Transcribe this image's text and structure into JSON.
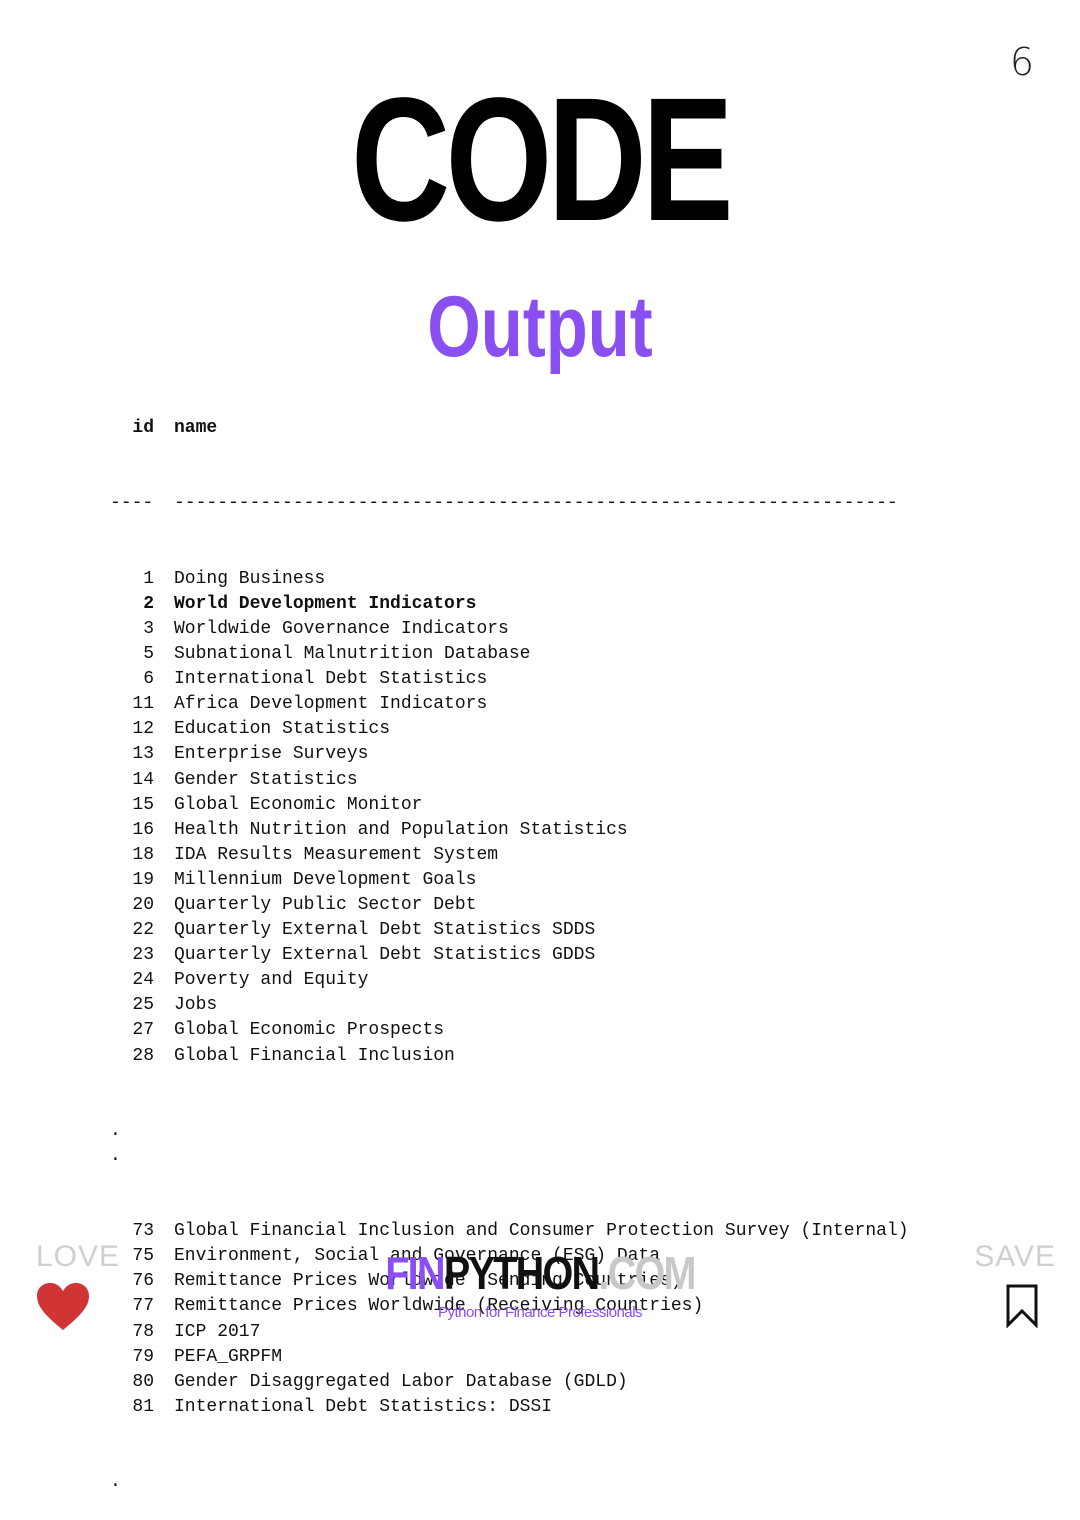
{
  "page_number": "6",
  "title": "CODE",
  "subtitle": "Output",
  "table": {
    "header": {
      "id": "id",
      "name": "name"
    },
    "separator": {
      "id": "----",
      "name": "-------------------------------------------------------------------"
    },
    "rows_top": [
      {
        "id": "1",
        "name": "Doing Business",
        "bold": false
      },
      {
        "id": "2",
        "name": "World Development Indicators",
        "bold": true
      },
      {
        "id": "3",
        "name": "Worldwide Governance Indicators",
        "bold": false
      },
      {
        "id": "5",
        "name": "Subnational Malnutrition Database",
        "bold": false
      },
      {
        "id": "6",
        "name": "International Debt Statistics",
        "bold": false
      },
      {
        "id": "11",
        "name": "Africa Development Indicators",
        "bold": false
      },
      {
        "id": "12",
        "name": "Education Statistics",
        "bold": false
      },
      {
        "id": "13",
        "name": "Enterprise Surveys",
        "bold": false
      },
      {
        "id": "14",
        "name": "Gender Statistics",
        "bold": false
      },
      {
        "id": "15",
        "name": "Global Economic Monitor",
        "bold": false
      },
      {
        "id": "16",
        "name": "Health Nutrition and Population Statistics",
        "bold": false
      },
      {
        "id": "18",
        "name": "IDA Results Measurement System",
        "bold": false
      },
      {
        "id": "19",
        "name": "Millennium Development Goals",
        "bold": false
      },
      {
        "id": "20",
        "name": "Quarterly Public Sector Debt",
        "bold": false
      },
      {
        "id": "22",
        "name": "Quarterly External Debt Statistics SDDS",
        "bold": false
      },
      {
        "id": "23",
        "name": "Quarterly External Debt Statistics GDDS",
        "bold": false
      },
      {
        "id": "24",
        "name": "Poverty and Equity",
        "bold": false
      },
      {
        "id": "25",
        "name": "Jobs",
        "bold": false
      },
      {
        "id": "27",
        "name": "Global Economic Prospects",
        "bold": false
      },
      {
        "id": "28",
        "name": "Global Financial Inclusion",
        "bold": false
      }
    ],
    "ellipsis_mid": [
      ".",
      "."
    ],
    "rows_bottom": [
      {
        "id": "73",
        "name": "Global Financial Inclusion and Consumer Protection Survey (Internal)",
        "bold": false
      },
      {
        "id": "75",
        "name": "Environment, Social and Governance (ESG) Data",
        "bold": false
      },
      {
        "id": "76",
        "name": "Remittance Prices Worldwide (Sending Countries)",
        "bold": false
      },
      {
        "id": "77",
        "name": "Remittance Prices Worldwide (Receiving Countries)",
        "bold": false
      },
      {
        "id": "78",
        "name": "ICP 2017",
        "bold": false
      },
      {
        "id": "79",
        "name": "PEFA_GRPFM",
        "bold": false
      },
      {
        "id": "80",
        "name": "Gender Disaggregated Labor Database (GDLD)",
        "bold": false
      },
      {
        "id": "81",
        "name": "International Debt Statistics: DSSI",
        "bold": false
      }
    ],
    "ellipsis_end": [
      "."
    ]
  },
  "footer": {
    "love_label": "LOVE",
    "save_label": "SAVE",
    "brand_fin": "FIN",
    "brand_python": "PYTHON",
    "brand_com": ".COM",
    "tagline": "Python for Finance Professionals",
    "icons": {
      "love": "heart-icon",
      "save": "bookmark-icon"
    }
  },
  "colors": {
    "accent": "#8a4ff0",
    "heart": "#d03434",
    "muted": "#cfcfcf"
  }
}
